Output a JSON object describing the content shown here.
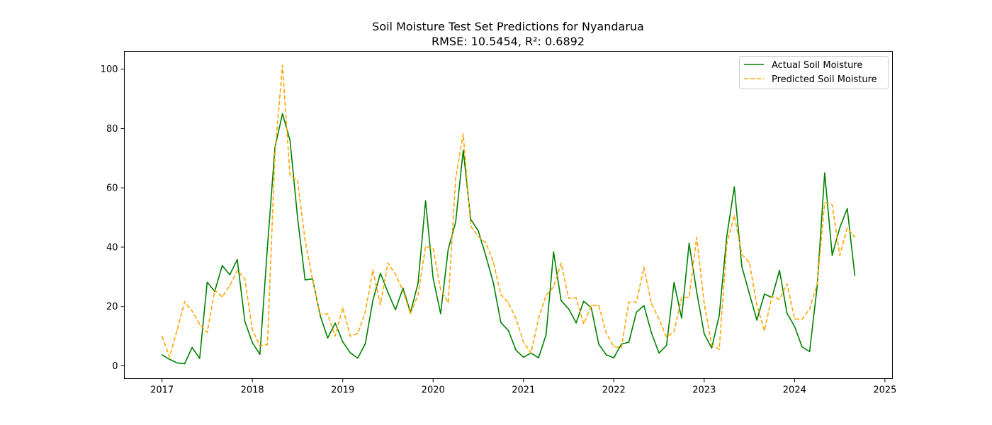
{
  "chart_data": {
    "type": "line",
    "title": "Soil Moisture Test Set Predictions for Nyandarua",
    "subtitle": "RMSE: 10.5454, R²: 0.6892",
    "xlabel": "",
    "ylabel": "",
    "x_ticks": [
      "2017",
      "2018",
      "2019",
      "2020",
      "2021",
      "2022",
      "2023",
      "2024",
      "2025"
    ],
    "y_ticks": [
      "0",
      "20",
      "40",
      "60",
      "80",
      "100"
    ],
    "xlim": [
      "2016-08",
      "2025-02"
    ],
    "ylim": [
      -4.3,
      106
    ],
    "grid": false,
    "legend_position": "top-right",
    "x": [
      "2017-01",
      "2017-02",
      "2017-03",
      "2017-04",
      "2017-05",
      "2017-06",
      "2017-07",
      "2017-08",
      "2017-09",
      "2017-10",
      "2017-11",
      "2017-12",
      "2018-01",
      "2018-02",
      "2018-03",
      "2018-04",
      "2018-05",
      "2018-06",
      "2018-07",
      "2018-08",
      "2018-09",
      "2018-10",
      "2018-11",
      "2018-12",
      "2019-01",
      "2019-02",
      "2019-03",
      "2019-04",
      "2019-05",
      "2019-06",
      "2019-07",
      "2019-08",
      "2019-09",
      "2019-10",
      "2019-11",
      "2019-12",
      "2020-01",
      "2020-02",
      "2020-03",
      "2020-04",
      "2020-05",
      "2020-06",
      "2020-07",
      "2020-08",
      "2020-09",
      "2020-10",
      "2020-11",
      "2020-12",
      "2021-01",
      "2021-02",
      "2021-03",
      "2021-04",
      "2021-05",
      "2021-06",
      "2021-07",
      "2021-08",
      "2021-09",
      "2021-10",
      "2021-11",
      "2021-12",
      "2022-01",
      "2022-02",
      "2022-03",
      "2022-04",
      "2022-05",
      "2022-06",
      "2022-07",
      "2022-08",
      "2022-09",
      "2022-10",
      "2022-11",
      "2022-12",
      "2023-01",
      "2023-02",
      "2023-03",
      "2023-04",
      "2023-05",
      "2023-06",
      "2023-07",
      "2023-08",
      "2023-09",
      "2023-10",
      "2023-11",
      "2023-12",
      "2024-01",
      "2024-02",
      "2024-03",
      "2024-04",
      "2024-05",
      "2024-06",
      "2024-07",
      "2024-08",
      "2024-09"
    ],
    "series": [
      {
        "name": "Actual Soil Moisture",
        "color": "#008000",
        "style": "solid",
        "values": [
          3.7,
          2.2,
          1.0,
          0.7,
          6.2,
          2.5,
          28.2,
          25.1,
          33.8,
          30.7,
          35.8,
          15.0,
          7.8,
          3.9,
          40.0,
          73.6,
          85.0,
          76.0,
          50.0,
          29.0,
          29.3,
          17.0,
          9.4,
          14.4,
          8.1,
          4.4,
          2.6,
          7.5,
          22.0,
          31.2,
          24.8,
          18.9,
          26.2,
          18.0,
          27.8,
          55.6,
          29.6,
          17.6,
          39.2,
          48.5,
          72.7,
          49.4,
          45.5,
          37.1,
          28.0,
          14.6,
          11.9,
          5.3,
          2.9,
          4.3,
          2.7,
          10.4,
          38.4,
          22.0,
          19.2,
          14.5,
          21.8,
          19.6,
          7.3,
          3.7,
          2.7,
          7.3,
          8.0,
          18.1,
          20.3,
          11.1,
          4.3,
          6.9,
          28.1,
          16.1,
          41.3,
          25.0,
          10.8,
          6.0,
          17.0,
          43.7,
          60.3,
          33.5,
          24.3,
          15.4,
          24.2,
          23.0,
          32.2,
          17.7,
          13.3,
          6.4,
          4.8,
          26.7,
          65.0,
          37.3,
          46.5,
          53.0,
          30.5
        ]
      },
      {
        "name": "Predicted Soil Moisture",
        "color": "#FFA500",
        "style": "dashed",
        "values": [
          10.0,
          3.0,
          12.0,
          21.6,
          18.5,
          14.0,
          11.3,
          25.5,
          23.2,
          27.0,
          32.2,
          29.2,
          12.2,
          6.7,
          7.2,
          71.6,
          101.3,
          64.1,
          62.6,
          42.3,
          29.0,
          17.4,
          17.5,
          10.0,
          19.6,
          10.0,
          10.9,
          18.2,
          32.3,
          20.6,
          34.7,
          30.9,
          25.3,
          17.6,
          23.9,
          40.2,
          39.5,
          25.8,
          21.3,
          63.3,
          78.2,
          47.1,
          43.6,
          41.5,
          35.0,
          24.0,
          21.2,
          16.0,
          8.0,
          4.3,
          16.0,
          23.8,
          26.6,
          34.6,
          22.8,
          22.9,
          14.1,
          20.3,
          20.4,
          11.0,
          6.5,
          6.1,
          21.5,
          21.5,
          33.2,
          20.9,
          15.8,
          9.7,
          11.6,
          23.0,
          23.2,
          43.3,
          21.1,
          7.0,
          5.6,
          41.0,
          50.7,
          37.6,
          34.8,
          20.5,
          11.8,
          23.5,
          22.4,
          27.6,
          15.8,
          15.7,
          19.2,
          27.6,
          55.0,
          54.3,
          37.3,
          46.4,
          43.4
        ]
      }
    ]
  }
}
